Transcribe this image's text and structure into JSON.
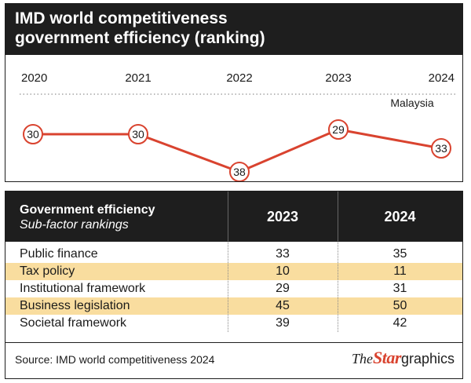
{
  "title": {
    "line1": "IMD world competitiveness",
    "line2": "government efficiency (ranking)"
  },
  "colors": {
    "dark": "#1e1e1e",
    "line": "#d9432f",
    "highlight_row": "#f9dd9f"
  },
  "chart_data": {
    "type": "line",
    "title": "IMD world competitiveness government efficiency (ranking)",
    "categories": [
      "2020",
      "2021",
      "2022",
      "2023",
      "2024"
    ],
    "series": [
      {
        "name": "Malaysia",
        "values": [
          30,
          30,
          38,
          29,
          33
        ]
      }
    ],
    "y_inverted": true,
    "grid": false,
    "legend": "top-right"
  },
  "table": {
    "header_main": "Government efficiency",
    "header_sub": "Sub-factor rankings",
    "columns": [
      "2023",
      "2024"
    ],
    "rows": [
      {
        "name": "Public finance",
        "values": [
          "33",
          "35"
        ]
      },
      {
        "name": "Tax policy",
        "values": [
          "10",
          "11"
        ]
      },
      {
        "name": "Institutional framework",
        "values": [
          "29",
          "31"
        ]
      },
      {
        "name": "Business legislation",
        "values": [
          "45",
          "50"
        ]
      },
      {
        "name": "Societal framework",
        "values": [
          "39",
          "42"
        ]
      }
    ]
  },
  "footer": {
    "source": "Source: IMD world competitiveness 2024",
    "brand_the": "The",
    "brand_star": "Star",
    "brand_graphics": "graphics"
  }
}
